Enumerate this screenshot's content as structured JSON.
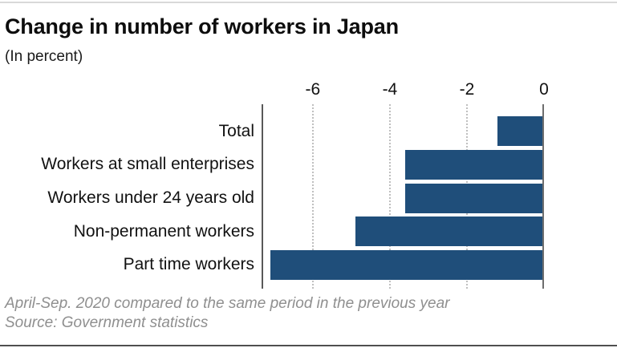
{
  "header": {
    "title": "Change in number of workers in Japan",
    "subtitle": "(In percent)"
  },
  "chart_data": {
    "type": "bar",
    "orientation": "horizontal",
    "title": "Change in number of workers in Japan",
    "subtitle": "(In percent)",
    "unit": "percent",
    "categories": [
      "Total",
      "Workers at small enterprises",
      "Workers under 24 years old",
      "Non-permanent workers",
      "Part time workers"
    ],
    "values": [
      -1.2,
      -3.6,
      -3.6,
      -4.9,
      -7.1
    ],
    "xticks": [
      -6,
      -4,
      -2,
      0
    ],
    "xlim": [
      -7.33,
      0
    ],
    "grid": "dotted-vertical",
    "legend": "none",
    "bar_color": "#1f4e7a"
  },
  "footer": {
    "note": "April-Sep. 2020 compared to the same period in the previous year",
    "source": "Source: Government statistics"
  },
  "colors": {
    "bar": "#1f4e7a",
    "axis_left": "#595959",
    "axis_zero": "#6e6e6e",
    "gridline": "#bfbfbf",
    "footnote": "#8f8f8f",
    "title": "#0d0d0d"
  }
}
